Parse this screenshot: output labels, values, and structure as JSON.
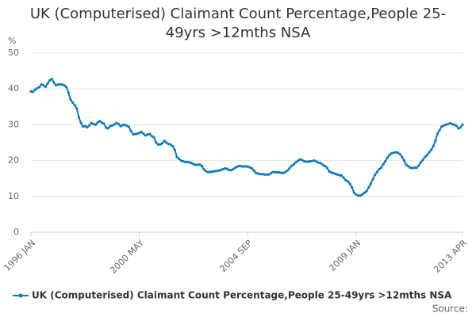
{
  "chart_data": {
    "type": "line",
    "title": "UK (Computerised) Claimant Count Percentage,People 25-49yrs >12mths NSA",
    "ylabel": "%",
    "source": "Source:",
    "ylim": [
      0,
      50
    ],
    "yticks": [
      0,
      10,
      20,
      30,
      40,
      50
    ],
    "grid": true,
    "categories": [
      "1996 JAN",
      null,
      null,
      null,
      null,
      null,
      null,
      null,
      null,
      null,
      null,
      null,
      null,
      null,
      null,
      null,
      null,
      null,
      null,
      null,
      null,
      null,
      null,
      null,
      null,
      null,
      null,
      null,
      null,
      null,
      null,
      null,
      null,
      null,
      null,
      null,
      null,
      null,
      null,
      null,
      null,
      null,
      null,
      null,
      null,
      null,
      null,
      null,
      null,
      null,
      null,
      null,
      "2000 MAY",
      null,
      null,
      null,
      null,
      null,
      null,
      null,
      null,
      null,
      null,
      null,
      null,
      null,
      null,
      null,
      null,
      null,
      null,
      null,
      null,
      null,
      null,
      null,
      null,
      null,
      null,
      null,
      null,
      null,
      null,
      null,
      null,
      null,
      null,
      null,
      null,
      null,
      null,
      null,
      null,
      null,
      null,
      null,
      null,
      null,
      null,
      null,
      null,
      null,
      null,
      null,
      "2004 SEP",
      null,
      null,
      null,
      null,
      null,
      null,
      null,
      null,
      null,
      null,
      null,
      null,
      null,
      null,
      null,
      null,
      null,
      null,
      null,
      null,
      null,
      null,
      null,
      null,
      null,
      null,
      null,
      null,
      null,
      null,
      null,
      null,
      null,
      null,
      null,
      null,
      null,
      null,
      null,
      null,
      null,
      null,
      null,
      null,
      null,
      null,
      null,
      null,
      null,
      null,
      null,
      "2009 JAN",
      null,
      null,
      null,
      null,
      null,
      null,
      null,
      null,
      null,
      null,
      null,
      null,
      null,
      null,
      null,
      null,
      null,
      null,
      null,
      null,
      null,
      null,
      null,
      null,
      null,
      null,
      null,
      null,
      null,
      null,
      null,
      null,
      null,
      null,
      null,
      null,
      null,
      null,
      null,
      null,
      null,
      null,
      null,
      null,
      null,
      null,
      null,
      null,
      null,
      null,
      "2013 APR"
    ],
    "series": [
      {
        "name": "UK (Computerised) Claimant Count Percentage,People 25-49yrs >12mths NSA",
        "color": "#0f7ab8",
        "values": [
          39.3,
          39.2,
          39.8,
          40.2,
          40.5,
          41.2,
          41.0,
          40.6,
          41.5,
          42.4,
          42.8,
          41.8,
          41.0,
          41.2,
          41.3,
          41.2,
          41.0,
          40.5,
          39.0,
          37.0,
          36.2,
          35.5,
          34.5,
          32.0,
          30.5,
          29.5,
          29.6,
          29.3,
          29.8,
          30.5,
          30.2,
          30.0,
          30.6,
          31.0,
          30.6,
          30.3,
          29.2,
          29.0,
          29.6,
          29.8,
          30.1,
          30.5,
          30.2,
          29.6,
          29.9,
          30.0,
          29.7,
          29.4,
          28.2,
          27.3,
          27.4,
          27.5,
          27.7,
          28.0,
          27.5,
          27.0,
          27.3,
          27.4,
          26.8,
          26.5,
          25.0,
          24.5,
          24.5,
          24.8,
          25.5,
          25.0,
          24.6,
          24.5,
          24.0,
          23.0,
          21.0,
          20.5,
          20.0,
          19.8,
          19.6,
          19.6,
          19.5,
          19.3,
          19.0,
          18.8,
          18.8,
          18.9,
          18.5,
          17.5,
          17.0,
          16.8,
          16.8,
          16.9,
          17.0,
          17.1,
          17.2,
          17.3,
          17.6,
          17.8,
          17.7,
          17.4,
          17.3,
          17.6,
          18.0,
          18.3,
          18.5,
          18.4,
          18.3,
          18.4,
          18.3,
          18.1,
          17.8,
          17.2,
          16.5,
          16.4,
          16.2,
          16.2,
          16.1,
          16.1,
          16.1,
          16.4,
          16.8,
          16.8,
          16.7,
          16.7,
          16.6,
          16.5,
          16.8,
          17.2,
          17.8,
          18.5,
          18.9,
          19.5,
          19.9,
          20.3,
          20.2,
          19.8,
          19.7,
          19.7,
          19.8,
          19.9,
          20.0,
          19.7,
          19.4,
          19.3,
          18.8,
          18.5,
          18.0,
          17.0,
          16.7,
          16.5,
          16.3,
          16.1,
          15.9,
          15.8,
          15.2,
          14.5,
          14.2,
          13.5,
          12.5,
          11.0,
          10.5,
          10.2,
          10.2,
          10.6,
          11.0,
          11.5,
          12.5,
          13.5,
          14.8,
          16.0,
          16.8,
          17.6,
          18.0,
          19.0,
          19.8,
          20.8,
          21.6,
          22.0,
          22.2,
          22.3,
          22.2,
          21.8,
          21.0,
          20.0,
          18.8,
          18.4,
          18.0,
          17.9,
          18.0,
          18.0,
          18.6,
          19.5,
          20.2,
          21.0,
          21.5,
          22.3,
          23.0,
          24.0,
          25.5,
          27.5,
          28.5,
          29.5,
          29.8,
          30.0,
          30.2,
          30.4,
          30.2,
          30.0,
          29.8,
          29.0,
          29.2,
          30.0
        ]
      }
    ]
  }
}
